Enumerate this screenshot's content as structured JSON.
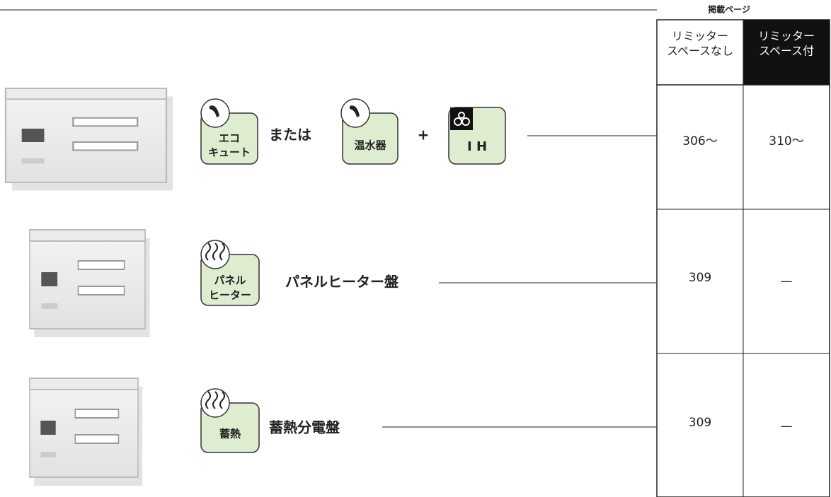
{
  "header": {
    "title": "掲載ページ",
    "columns": [
      [
        "リミッター",
        "スペースなし"
      ],
      [
        "リミッター",
        "スペース付"
      ]
    ]
  },
  "rows": [
    {
      "icons": [
        {
          "label": [
            "エコ",
            "キュート"
          ]
        },
        {
          "label": [
            "温水器"
          ]
        },
        {
          "label": [
            "I H"
          ]
        }
      ],
      "connectors": [
        "または",
        "+"
      ],
      "pages": [
        "306～",
        "310～"
      ]
    },
    {
      "icons": [
        {
          "label": [
            "パネル",
            "ヒーター"
          ]
        }
      ],
      "name": "パネルヒーター盤",
      "pages": [
        "309",
        "—"
      ]
    },
    {
      "icons": [
        {
          "label": [
            "蓄熱"
          ]
        }
      ],
      "name": "蓄熱分電盤",
      "pages": [
        "309",
        "—"
      ]
    }
  ]
}
